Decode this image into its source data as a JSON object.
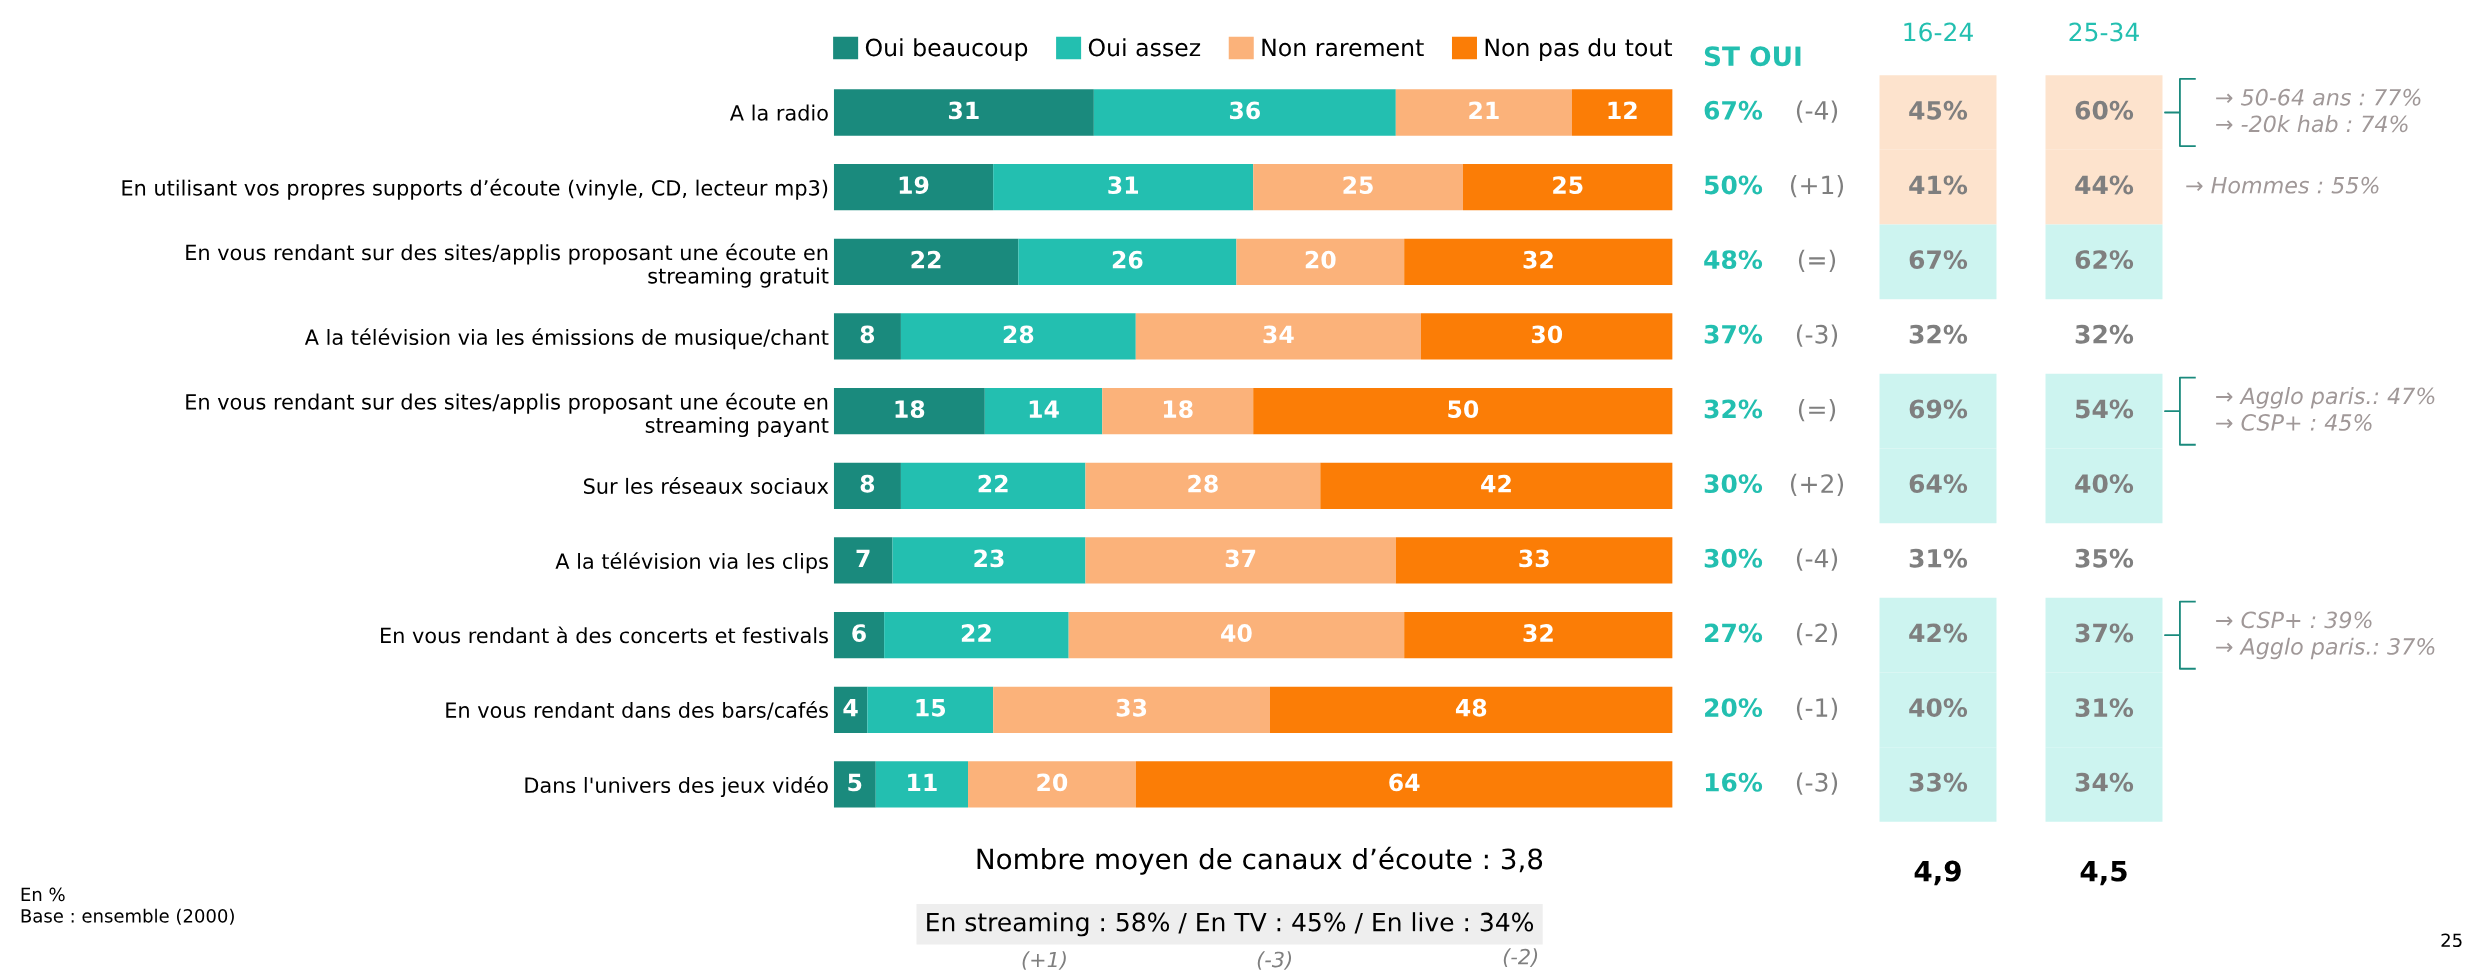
{
  "chart_data": {
    "type": "bar",
    "orientation": "horizontal",
    "stacked": true,
    "data_labels": true,
    "legend": "top",
    "grid": false,
    "tick_labels": "y",
    "categories": [
      "A la radio",
      "En utilisant vos propres supports d’écoute (vinyle, CD, lecteur mp3)",
      "En vous rendant sur des sites/applis proposant une écoute en\nstreaming gratuit",
      "A la télévision via les émissions de musique/chant",
      "En vous rendant sur des sites/applis proposant une écoute en\nstreaming payant",
      "Sur les réseaux sociaux",
      "A la télévision via les clips",
      "En vous rendant à des concerts et festivals",
      "En vous rendant dans des bars/cafés",
      "Dans l'univers des jeux vidéo"
    ],
    "series": [
      {
        "name": "Oui beaucoup",
        "color": "#1a8a7d",
        "values": [
          31,
          19,
          22,
          8,
          18,
          8,
          7,
          6,
          4,
          5
        ]
      },
      {
        "name": "Oui assez",
        "color": "#23bfb0",
        "values": [
          36,
          31,
          26,
          28,
          14,
          22,
          23,
          22,
          15,
          11
        ]
      },
      {
        "name": "Non rarement",
        "color": "#fbb27a",
        "values": [
          21,
          25,
          20,
          34,
          18,
          28,
          37,
          40,
          33,
          20
        ]
      },
      {
        "name": "Non pas du tout",
        "color": "#fb7d06",
        "values": [
          12,
          25,
          32,
          30,
          50,
          42,
          33,
          32,
          48,
          64
        ]
      }
    ],
    "annotations": [
      "ST OUI",
      "16-24",
      "25-34",
      "67%",
      "50%",
      "48%",
      "37%",
      "32%",
      "30%",
      "30%",
      "27%",
      "20%",
      "16%",
      "(-4)",
      "(+1)",
      "(=)",
      "(-3)",
      "(=)",
      "(+2)",
      "(-4)",
      "(-2)",
      "(-1)",
      "(-3)",
      "45%",
      "41%",
      "67%",
      "32%",
      "69%",
      "64%",
      "31%",
      "42%",
      "40%",
      "33%",
      "60%",
      "44%",
      "62%",
      "32%",
      "54%",
      "40%",
      "35%",
      "37%",
      "31%",
      "34%",
      "→ 50-64 ans : 77%\n→ -20k hab : 74%",
      "→ Hommes : 55%",
      "→ Agglo paris.: 47%\n→ CSP+ : 45%",
      "→ CSP+ : 39%\n→ Agglo paris.: 37%",
      "Nombre moyen de canaux d’écoute : 3,8",
      "4,9",
      "4,5",
      "En streaming : 58% / En TV : 45% / En live : 34%",
      "(+1)",
      "(-3)",
      "(-2)",
      "En %",
      "Base : ensemble (2000)",
      "25"
    ]
  }
}
